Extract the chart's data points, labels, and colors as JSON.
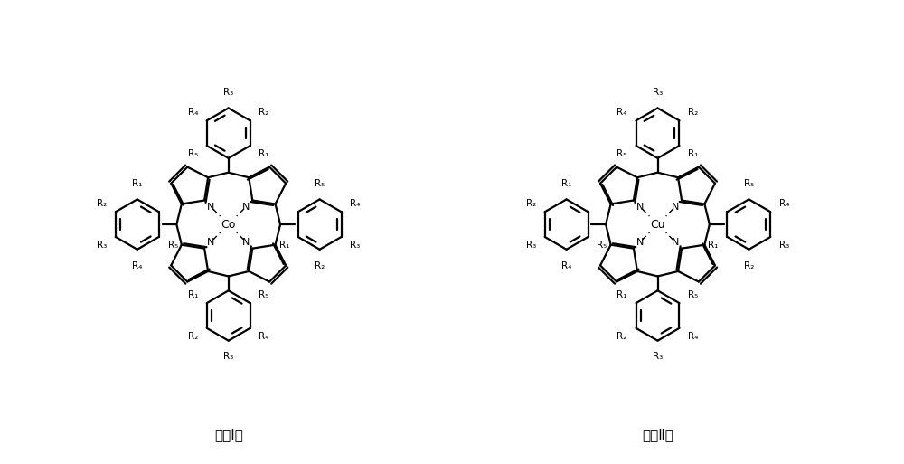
{
  "background_color": "#ffffff",
  "line_color": "#000000",
  "text_color": "#000000",
  "figsize": [
    10.0,
    5.13
  ],
  "dpi": 100,
  "label_I": "式（Ⅰ）",
  "label_II": "式（Ⅱ）",
  "metal_I": "Co",
  "metal_II": "Cu",
  "lw_main": 1.6,
  "lw_dashed": 1.0,
  "fontsize_metal": 9,
  "fontsize_N": 8,
  "fontsize_R": 7.5,
  "fontsize_label": 11
}
